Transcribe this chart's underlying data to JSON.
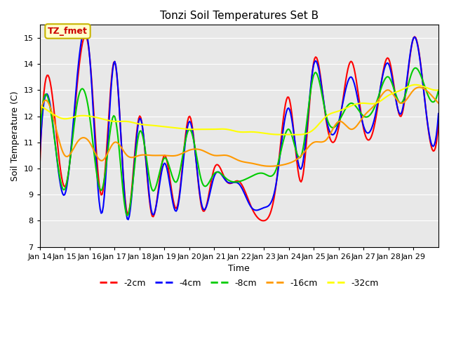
{
  "title": "Tonzi Soil Temperatures Set B",
  "xlabel": "Time",
  "ylabel": "Soil Temperature (C)",
  "ylim": [
    7.0,
    15.5
  ],
  "yticks": [
    7.0,
    8.0,
    9.0,
    10.0,
    11.0,
    12.0,
    13.0,
    14.0,
    15.0
  ],
  "x_labels": [
    "Jan 14",
    "Jan 15",
    "Jan 16",
    "Jan 17",
    "Jan 18",
    "Jan 19",
    "Jan 20",
    "Jan 21",
    "Jan 22",
    "Jan 23",
    "Jan 24",
    "Jan 25",
    "Jan 26",
    "Jan 27",
    "Jan 28",
    "Jan 29"
  ],
  "plot_bg_color": "#e8e8e8",
  "legend_label": "TZ_fmet",
  "legend_box_color": "#ffffcc",
  "legend_box_edge": "#c8b400",
  "series_labels": [
    "-2cm",
    "-4cm",
    "-8cm",
    "-16cm",
    "-32cm"
  ],
  "series_colors": [
    "#ff0000",
    "#0000ff",
    "#00cc00",
    "#ff9900",
    "#ffff00"
  ],
  "line_width": 1.5,
  "key_times": [
    0,
    0.5,
    1.0,
    1.5,
    2.0,
    2.5,
    3.0,
    3.5,
    4.0,
    4.5,
    5.0,
    5.5,
    6.0,
    6.5,
    7.0,
    7.5,
    8.0,
    8.5,
    9.0,
    9.5,
    10.0,
    10.5,
    11.0,
    11.5,
    12.0,
    12.5,
    13.0,
    13.5,
    14.0,
    14.5,
    15.0,
    15.5,
    16.0
  ],
  "vals_2cm": [
    10.1,
    12.8,
    9.3,
    13.2,
    14.3,
    9.0,
    14.1,
    8.3,
    12.0,
    8.2,
    10.5,
    8.5,
    12.0,
    8.5,
    10.0,
    9.5,
    9.5,
    8.5,
    8.0,
    9.5,
    12.7,
    9.5,
    14.1,
    11.8,
    11.6,
    14.1,
    11.5,
    12.0,
    14.2,
    12.0,
    15.0,
    12.2,
    11.7
  ],
  "vals_4cm": [
    10.5,
    11.9,
    9.0,
    13.5,
    14.3,
    8.3,
    14.1,
    8.1,
    11.9,
    8.3,
    10.2,
    8.4,
    11.8,
    8.6,
    9.7,
    9.5,
    9.4,
    8.5,
    8.5,
    9.5,
    12.3,
    10.0,
    14.0,
    11.9,
    11.8,
    13.5,
    11.6,
    12.2,
    14.0,
    12.1,
    15.0,
    12.2,
    12.1
  ],
  "vals_8cm": [
    11.3,
    11.8,
    9.2,
    12.5,
    12.0,
    9.2,
    12.0,
    8.2,
    11.4,
    9.2,
    10.4,
    9.5,
    11.5,
    9.5,
    9.8,
    9.6,
    9.5,
    9.7,
    9.8,
    10.0,
    11.5,
    10.5,
    13.6,
    12.0,
    11.8,
    12.5,
    12.0,
    12.5,
    13.5,
    12.5,
    13.8,
    13.0,
    13.0
  ],
  "vals_16cm": [
    12.0,
    12.1,
    10.5,
    11.0,
    11.0,
    10.3,
    11.0,
    10.5,
    10.5,
    10.5,
    10.5,
    10.5,
    10.7,
    10.7,
    10.5,
    10.5,
    10.3,
    10.2,
    10.1,
    10.1,
    10.2,
    10.5,
    11.0,
    11.1,
    11.8,
    11.5,
    12.0,
    12.5,
    13.0,
    12.5,
    13.0,
    13.0,
    12.5
  ],
  "vals_32cm": [
    12.4,
    12.1,
    11.9,
    12.0,
    12.0,
    11.9,
    11.8,
    11.8,
    11.7,
    11.65,
    11.6,
    11.55,
    11.5,
    11.5,
    11.5,
    11.5,
    11.4,
    11.4,
    11.35,
    11.3,
    11.3,
    11.3,
    11.5,
    12.0,
    12.2,
    12.4,
    12.5,
    12.5,
    12.8,
    13.0,
    13.2,
    13.1,
    13.0
  ]
}
